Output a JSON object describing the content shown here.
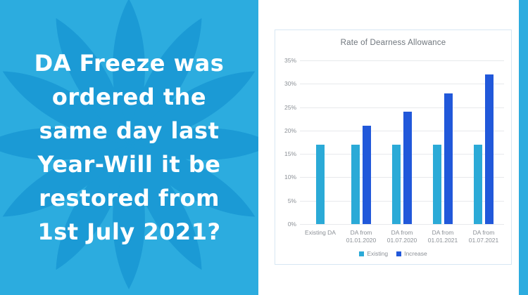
{
  "left_panel": {
    "background_color": "#2cacdf",
    "flower_color": "#1b9ad5",
    "text_color": "#ffffff",
    "headline_lines": [
      "DA Freeze was",
      "ordered the",
      "same day last",
      "Year-Will it be",
      "restored from",
      "1st July 2021?"
    ]
  },
  "chart_data": {
    "type": "bar",
    "title": "Rate of Dearness Allowance",
    "categories": [
      "Existing DA",
      "DA from\n01.01.2020",
      "DA from\n01.07.2020",
      "DA from\n01.01.2021",
      "DA from\n01.07.2021"
    ],
    "series": [
      {
        "name": "Existing",
        "color": "#2baad7",
        "values": [
          17,
          17,
          17,
          17,
          17
        ]
      },
      {
        "name": "Increase",
        "color": "#2158da",
        "values": [
          null,
          21,
          24,
          28,
          32
        ]
      }
    ],
    "y_ticks": [
      "0%",
      "5%",
      "10%",
      "15%",
      "20%",
      "25%",
      "30%",
      "35%"
    ],
    "ylim": [
      0,
      35
    ],
    "grid": true,
    "legend_position": "bottom",
    "colors": {
      "card_border": "#d7e7f3",
      "gridline": "#e7e9ec",
      "axis_text": "#8b9096",
      "title_text": "#6f767d"
    }
  }
}
